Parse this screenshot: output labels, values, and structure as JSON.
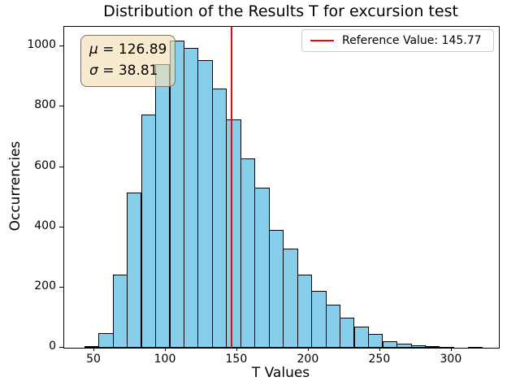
{
  "figure": {
    "title": "Distribution of the Results T for excursion test",
    "xlabel": "T Values",
    "ylabel": "Occurrencies"
  },
  "stats_box": {
    "lines": [
      {
        "symbol": "μ",
        "text": "= 126.89"
      },
      {
        "symbol": "σ",
        "text": "= 38.81"
      }
    ]
  },
  "legend": {
    "items": [
      {
        "label": "Reference Value: 145.77",
        "line_color": "#ff0000"
      }
    ]
  },
  "chart_data": {
    "type": "bar",
    "subtype": "histogram",
    "title": "Distribution of the Results T for excursion test",
    "xlabel": "T Values",
    "ylabel": "Occurrencies",
    "bin_edges": [
      43.0,
      52.9,
      62.9,
      72.8,
      82.7,
      92.6,
      102.6,
      112.5,
      122.4,
      132.4,
      142.3,
      152.2,
      162.1,
      172.1,
      182.0,
      191.9,
      201.9,
      211.8,
      221.7,
      231.6,
      241.6,
      251.5,
      261.4,
      271.4,
      281.3,
      291.2,
      301.1,
      311.1,
      321.0
    ],
    "counts": [
      5,
      48,
      242,
      515,
      775,
      940,
      1018,
      996,
      954,
      860,
      757,
      628,
      531,
      390,
      328,
      243,
      190,
      142,
      100,
      70,
      45,
      22,
      14,
      8,
      5,
      3,
      0,
      2
    ],
    "mean": 126.89,
    "std": 38.81,
    "reference_value": 145.77,
    "xlim": [
      29,
      333
    ],
    "ylim": [
      0,
      1065
    ],
    "xticks": [
      50,
      100,
      150,
      200,
      250,
      300
    ],
    "yticks": [
      0,
      200,
      400,
      600,
      800,
      1000
    ],
    "grid": false,
    "legend_position": "upper right",
    "colors": {
      "bar_fill": "#87CEEB",
      "bar_edge": "#000000",
      "reference_line": "#ff0000",
      "stats_box_bg": "#F5DEB3"
    }
  }
}
